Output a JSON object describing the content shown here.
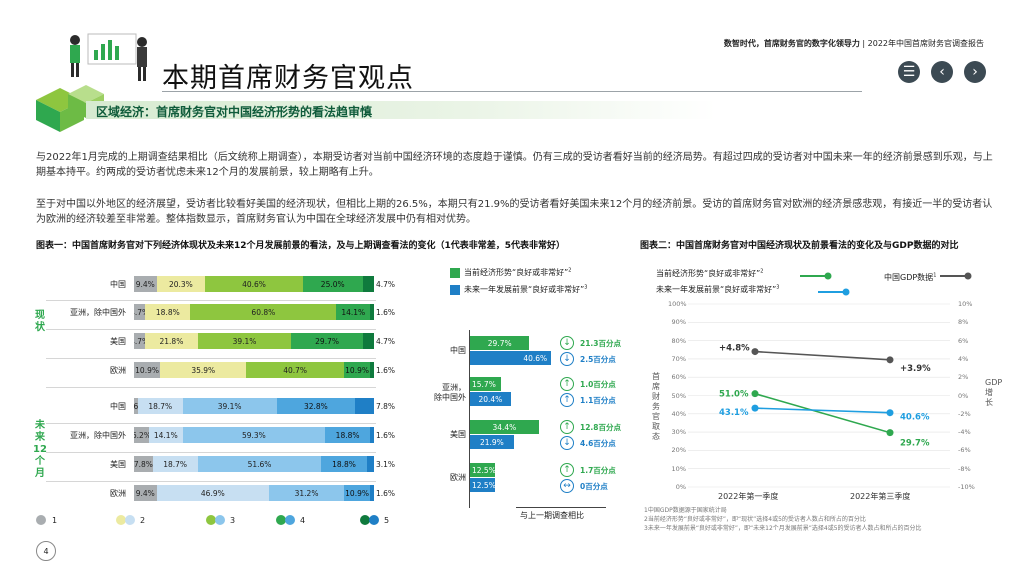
{
  "header": {
    "report_bold": "数智时代，首席财务官的数字化领导力",
    "report_sep": "|",
    "report_name": "2022年中国首席财务官调查报告"
  },
  "page": {
    "title": "本期首席财务官观点",
    "section": "区域经济：首席财务官对中国经济形势的看法趋审慎",
    "number": "4"
  },
  "paragraphs": [
    "与2022年1月完成的上期调查结果相比（后文统称上期调查），本期受访者对当前中国经济环境的态度趋于谨慎。仍有三成的受访者看好当前的经济局势。有超过四成的受访者对中国未来一年的经济前景感到乐观，与上期基本持平。约两成的受访者忧虑未来12个月的发展前景，较上期略有上升。",
    "至于对中国以外地区的经济展望，受访者比较看好美国的经济现状，但相比上期的26.5%，本期只有21.9%的受访者看好美国未来12个月的经济前景。受访的首席财务官对欧洲的经济景感悲观，有接近一半的受访者认为欧洲的经济较差至非常差。整体指数显示，首席财务官认为中国在全球经济发展中仍有相对优势。"
  ],
  "figure1": {
    "title": "图表一：中国首席财务官对下列经济体现状及未来12个月发展前景的看法，及与上期调查看法的变化（1代表非常差，5代表非常好）",
    "group_current": "现状",
    "group_future": "未来12个月",
    "colors": [
      "#a9adb0",
      "#eceaa0",
      "#8ec63f",
      "#2fa84f",
      "#0f7a3d",
      "#c7dff2",
      "#8cc6ec",
      "#4ea6de",
      "#1f7fc6",
      "#0b4f8a"
    ],
    "legend": [
      "1",
      "2",
      "3",
      "4",
      "5"
    ],
    "rows_current": [
      {
        "label": "中国",
        "values": [
          "9.4%",
          "20.3%",
          "40.6%",
          "25.0%",
          "4.7%"
        ]
      },
      {
        "label": "亚洲，除中国外",
        "values": [
          "4.7%",
          "18.8%",
          "60.8%",
          "14.1%",
          "1.6%"
        ]
      },
      {
        "label": "美国",
        "values": [
          "4.7%",
          "21.8%",
          "39.1%",
          "29.7%",
          "4.7%"
        ]
      },
      {
        "label": "欧洲",
        "values": [
          "10.9%",
          "35.9%",
          "40.7%",
          "10.9%",
          "1.6%"
        ]
      }
    ],
    "rows_future": [
      {
        "label": "中国",
        "values": [
          "1.6%",
          "18.7%",
          "39.1%",
          "32.8%",
          "7.8%"
        ]
      },
      {
        "label": "亚洲，除中国外",
        "values": [
          "6.2%",
          "14.1%",
          "59.3%",
          "18.8%",
          "1.6%"
        ]
      },
      {
        "label": "美国",
        "values": [
          "7.8%",
          "18.7%",
          "51.6%",
          "18.8%",
          "3.1%"
        ]
      },
      {
        "label": "欧洲",
        "values": [
          "9.4%",
          "46.9%",
          "31.2%",
          "10.9%",
          "1.6%"
        ]
      }
    ]
  },
  "figure_mid": {
    "legend_green": "当前经济形势“良好或非常好”",
    "legend_green_sup": "2",
    "legend_blue": "未来一年发展前景“良好或非常好”",
    "legend_blue_sup": "3",
    "footer": "与上一期调查相比",
    "rows": [
      {
        "label": "中国",
        "green": "29.7%",
        "blue": "40.6%",
        "green_change": "21.3百分点",
        "blue_change": "2.5百分点",
        "green_dir": "↓",
        "blue_dir": "↓"
      },
      {
        "label": "亚洲，除中国外",
        "green": "15.7%",
        "blue": "20.4%",
        "green_change": "1.0百分点",
        "blue_change": "1.1百分点",
        "green_dir": "↑",
        "blue_dir": "↑"
      },
      {
        "label": "美国",
        "green": "34.4%",
        "blue": "21.9%",
        "green_change": "12.8百分点",
        "blue_change": "4.6百分点",
        "green_dir": "↑",
        "blue_dir": "↓"
      },
      {
        "label": "欧洲",
        "green": "12.5%",
        "blue": "12.5%",
        "green_change": "1.7百分点",
        "blue_change": "0百分点",
        "green_dir": "↑",
        "blue_dir": "↔"
      }
    ]
  },
  "figure2": {
    "title": "图表二：中国首席财务官对中国经济现状及前景看法的变化及与GDP数据的对比",
    "legend_current": "当前经济形势“良好或非常好”",
    "legend_current_sup": "2",
    "legend_future": "未来一年发展前景“良好或非常好”",
    "legend_future_sup": "3",
    "legend_gdp": "中国GDP数据",
    "legend_gdp_sup": "1",
    "y_left_label": "首席财务官取态",
    "y_right_label": "GDP增长",
    "y_left_ticks": [
      "100%",
      "90%",
      "80%",
      "70%",
      "60%",
      "50%",
      "40%",
      "30%",
      "20%",
      "10%",
      "0%"
    ],
    "y_right_ticks": [
      "10%",
      "8%",
      "6%",
      "4%",
      "2%",
      "0%",
      "-2%",
      "-4%",
      "-6%",
      "-8%",
      "-10%"
    ],
    "x_labels": [
      "2022年第一季度",
      "2022年第三季度"
    ],
    "notes": [
      "1中国GDP数据源于国家统计局",
      "2当前经济形势“良好或非常好”，即“现状”选择4或5的受访者人数占和所占的百分比",
      "3未来一年发展前景“良好或非常好”，即“未来12个月发展前景”选择4或5的受访者人数占和所占的百分比"
    ],
    "colors": {
      "current": "#2fa84f",
      "future": "#1f9ee0",
      "gdp": "#555555"
    }
  },
  "chart_data": [
    {
      "type": "bar",
      "title": "图表一：中国首席财务官对下列经济体现状及未来12个月发展前景的看法，及与上期调查看法的变化（1代表非常差，5代表非常好）",
      "stacked": true,
      "categories": [
        "现状-中国",
        "现状-亚洲，除中国外",
        "现状-美国",
        "现状-欧洲",
        "未来-中国",
        "未来-亚洲，除中国外",
        "未来-美国",
        "未来-欧洲"
      ],
      "series": [
        {
          "name": "1",
          "values": [
            9.4,
            4.7,
            4.7,
            10.9,
            1.6,
            6.2,
            7.8,
            9.4
          ]
        },
        {
          "name": "2",
          "values": [
            20.3,
            18.8,
            21.8,
            35.9,
            18.7,
            14.1,
            18.7,
            46.9
          ]
        },
        {
          "name": "3",
          "values": [
            40.6,
            60.8,
            39.1,
            40.7,
            39.1,
            59.3,
            51.6,
            31.2
          ]
        },
        {
          "name": "4",
          "values": [
            25.0,
            14.1,
            29.7,
            10.9,
            32.8,
            18.8,
            18.8,
            10.9
          ]
        },
        {
          "name": "5",
          "values": [
            4.7,
            1.6,
            4.7,
            1.6,
            7.8,
            1.6,
            3.1,
            1.6
          ]
        }
      ],
      "xlim": [
        0,
        100
      ]
    },
    {
      "type": "bar",
      "title": "与上一期调查相比",
      "categories": [
        "中国",
        "亚洲，除中国外",
        "美国",
        "欧洲"
      ],
      "series": [
        {
          "name": "当前经济形势“良好或非常好”",
          "values": [
            29.7,
            15.7,
            34.4,
            12.5
          ]
        },
        {
          "name": "未来一年发展前景“良好或非常好”",
          "values": [
            40.6,
            20.4,
            21.9,
            12.5
          ]
        }
      ]
    },
    {
      "type": "line",
      "title": "图表二：中国首席财务官对中国经济现状及前景看法的变化及与GDP数据的对比",
      "x": [
        "2022年第一季度",
        "2022年第三季度"
      ],
      "series": [
        {
          "name": "当前经济形势“良好或非常好”",
          "values": [
            51.0,
            29.7
          ],
          "labels": [
            "51.0%",
            "29.7%"
          ],
          "axis": "left"
        },
        {
          "name": "未来一年发展前景“良好或非常好”",
          "values": [
            43.1,
            40.6
          ],
          "labels": [
            "43.1%",
            "40.6%"
          ],
          "axis": "left"
        },
        {
          "name": "中国GDP数据",
          "values": [
            4.8,
            3.9
          ],
          "labels": [
            "+4.8%",
            "+3.9%"
          ],
          "axis": "right"
        }
      ],
      "ylim": [
        0,
        100
      ],
      "y2lim": [
        -10,
        10
      ]
    }
  ]
}
